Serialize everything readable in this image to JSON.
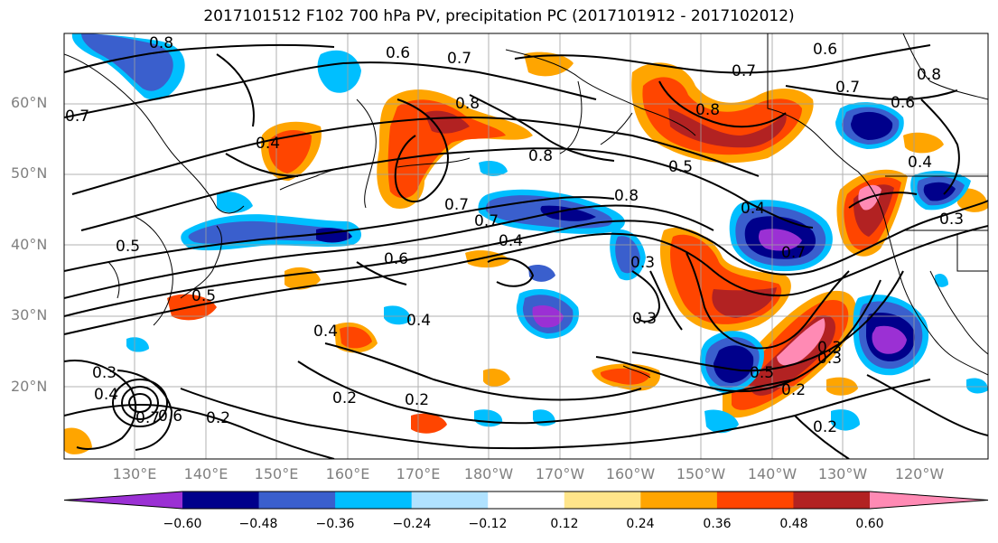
{
  "title": "2017101512 F102 700 hPa PV, precipitation PC (2017101912 - 2017102012)",
  "map": {
    "lat_labels": [
      "60°N",
      "50°N",
      "40°N",
      "30°N",
      "20°N"
    ],
    "lon_labels": [
      "130°E",
      "140°E",
      "150°E",
      "160°E",
      "170°E",
      "180°W",
      "170°W",
      "160°W",
      "150°W",
      "140°W",
      "130°W",
      "120°W"
    ],
    "contour_labels": [
      "0.8",
      "0.7",
      "0.6",
      "0.7",
      "0.8",
      "0.7",
      "0.6",
      "0.7",
      "0.6",
      "0.8",
      "0.8",
      "0.4",
      "0.4",
      "0.5",
      "0.8",
      "0.8",
      "0.7",
      "0.7",
      "0.6",
      "0.4",
      "0.5",
      "0.5",
      "0.4",
      "0.4",
      "0.7",
      "0.3",
      "0.3",
      "0.4",
      "0.3",
      "0.3",
      "0.2",
      "0.2",
      "0.2",
      "0.2",
      "0.3",
      "0.4",
      "0.7",
      "0.6",
      "0.2",
      "0.5",
      "0.3"
    ]
  },
  "colorbar": {
    "colors": [
      "#9b30d4",
      "#00008b",
      "#3a5fcd",
      "#00bfff",
      "#b0e2ff",
      "#ffffff",
      "#ffe58a",
      "#ffa500",
      "#ff4500",
      "#b22222",
      "#ff8ab4"
    ],
    "tick_labels": [
      "−0.60",
      "−0.48",
      "−0.36",
      "−0.24",
      "−0.12",
      "0.12",
      "0.24",
      "0.36",
      "0.48",
      "0.60"
    ]
  }
}
